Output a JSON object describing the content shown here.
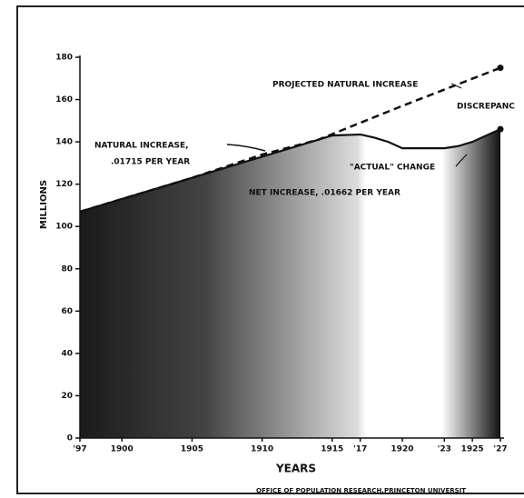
{
  "chart_data": {
    "type": "line",
    "y_label": "MILLIONS",
    "x_label": "YEARS",
    "source": "OFFICE OF POPULATION RESEARCH,PRINCETON UNIVERSIT",
    "annotations": [
      "PROJECTED NATURAL INCREASE",
      "DISCREPANC",
      "NATURAL INCREASE,",
      ".01715 PER YEAR",
      "NET INCREASE, .01662 PER YEAR",
      "\"ACTUAL\" CHANGE"
    ],
    "xlim": [
      1897,
      1927
    ],
    "xticks": [
      {
        "value": 1897,
        "label": "'97"
      },
      1900,
      1905,
      1910,
      1915,
      {
        "value": 1917,
        "label": "'17"
      },
      1920,
      {
        "value": 1923,
        "label": "'23"
      },
      1925,
      {
        "value": 1927,
        "label": "'27"
      }
    ],
    "ylim": [
      0,
      180
    ],
    "yticks": [
      0,
      20,
      40,
      60,
      80,
      100,
      120,
      140,
      160,
      180
    ],
    "series": [
      {
        "color": "#111111",
        "style": "dashed",
        "x": [
          1897,
          1905,
          1910,
          1914,
          1920,
          1927
        ],
        "values": [
          107,
          123,
          134,
          141,
          157,
          175
        ]
      },
      {
        "color": "#111111",
        "style": "solid",
        "fill": true,
        "x": [
          1897,
          1914,
          1915,
          1917,
          1918,
          1919,
          1920,
          1921,
          1922,
          1923,
          1924,
          1925,
          1926,
          1927
        ],
        "values": [
          107,
          141,
          143,
          143.5,
          142,
          140,
          137,
          137,
          137,
          137,
          138,
          140,
          143,
          146
        ]
      }
    ]
  }
}
